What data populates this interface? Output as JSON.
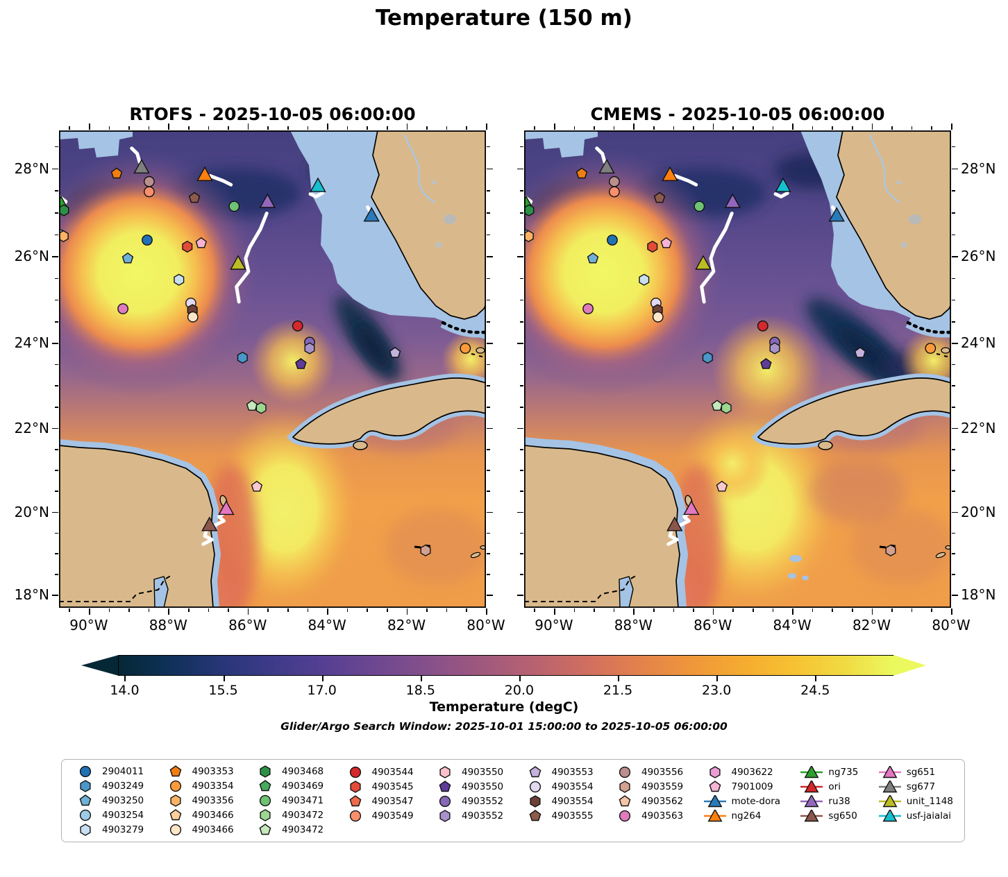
{
  "title": "Temperature (150 m)",
  "subtitle": "Glider/Argo Search Window: 2025-10-01 15:00:00 to 2025-10-05 06:00:00",
  "panels": [
    {
      "title": "RTOFS - 2025-10-05 06:00:00"
    },
    {
      "title": "CMEMS - 2025-10-05 06:00:00"
    }
  ],
  "axes": {
    "lat_ticks": [
      {
        "value": 18,
        "label": "18°N"
      },
      {
        "value": 20,
        "label": "20°N"
      },
      {
        "value": 22,
        "label": "22°N"
      },
      {
        "value": 24,
        "label": "24°N"
      },
      {
        "value": 26,
        "label": "26°N"
      },
      {
        "value": 28,
        "label": "28°N"
      }
    ],
    "lon_ticks": [
      {
        "value": -90,
        "label": "90°W"
      },
      {
        "value": -88,
        "label": "88°W"
      },
      {
        "value": -86,
        "label": "86°W"
      },
      {
        "value": -84,
        "label": "84°W"
      },
      {
        "value": -82,
        "label": "82°W"
      },
      {
        "value": -80,
        "label": "80°W"
      }
    ]
  },
  "colorbar": {
    "label": "Temperature (degC)",
    "ticks": [
      "14.0",
      "15.5",
      "17.0",
      "18.5",
      "20.0",
      "21.5",
      "23.0",
      "24.5"
    ],
    "tick_values": [
      14.0,
      15.5,
      17.0,
      18.5,
      20.0,
      21.5,
      23.0,
      24.5
    ],
    "vmin": 13.9,
    "vmax": 25.7,
    "gradient": [
      [
        "#062836",
        0.0
      ],
      [
        "#0d3055",
        0.059
      ],
      [
        "#263575",
        0.127
      ],
      [
        "#3c3b88",
        0.195
      ],
      [
        "#553f92",
        0.263
      ],
      [
        "#6d4791",
        0.331
      ],
      [
        "#85508a",
        0.398
      ],
      [
        "#9e587e",
        0.466
      ],
      [
        "#b76271",
        0.534
      ],
      [
        "#cf6e60",
        0.602
      ],
      [
        "#e2814d",
        0.669
      ],
      [
        "#ee963b",
        0.737
      ],
      [
        "#f5ab30",
        0.805
      ],
      [
        "#f7c232",
        0.873
      ],
      [
        "#f0dc44",
        0.941
      ],
      [
        "#ebf95e",
        1.0
      ]
    ]
  },
  "legend": {
    "columns": [
      [
        {
          "label": "2904011",
          "shape": "circle",
          "color": "#2171b5"
        },
        {
          "label": "4903249",
          "shape": "hexagon",
          "color": "#4a97c9"
        },
        {
          "label": "4903250",
          "shape": "pentagon",
          "color": "#71b0d6"
        },
        {
          "label": "4903254",
          "shape": "circle",
          "color": "#9dcae6"
        },
        {
          "label": "4903279",
          "shape": "hexagon",
          "color": "#c8dff0"
        }
      ],
      [
        {
          "label": "4903353",
          "shape": "pentagon",
          "color": "#f07f12"
        },
        {
          "label": "4903354",
          "shape": "circle",
          "color": "#fd9a3c"
        },
        {
          "label": "4903356",
          "shape": "hexagon",
          "color": "#fdb366"
        },
        {
          "label": "4903466",
          "shape": "pentagon",
          "color": "#fdcf9a"
        },
        {
          "label": "4903466",
          "shape": "circle",
          "color": "#fde5c8"
        }
      ],
      [
        {
          "label": "4903468",
          "shape": "hexagon",
          "color": "#2c9147"
        },
        {
          "label": "4903469",
          "shape": "pentagon",
          "color": "#47ab5e"
        },
        {
          "label": "4903471",
          "shape": "circle",
          "color": "#6ec273"
        },
        {
          "label": "4903472",
          "shape": "hexagon",
          "color": "#9cd792"
        },
        {
          "label": "4903472",
          "shape": "pentagon",
          "color": "#c5e8bd"
        }
      ],
      [
        {
          "label": "4903544",
          "shape": "circle",
          "color": "#d4292d"
        },
        {
          "label": "4903545",
          "shape": "hexagon",
          "color": "#e34a38"
        },
        {
          "label": "4903547",
          "shape": "pentagon",
          "color": "#ef6a4c"
        },
        {
          "label": "4903549",
          "shape": "circle",
          "color": "#f98f6d"
        }
      ],
      [
        {
          "label": "4903550",
          "shape": "hexagon",
          "color": "#fbc0ca"
        },
        {
          "label": "4903550",
          "shape": "pentagon",
          "color": "#5e3c99"
        },
        {
          "label": "4903552",
          "shape": "circle",
          "color": "#8668b6"
        },
        {
          "label": "4903552",
          "shape": "hexagon",
          "color": "#a991cc"
        }
      ],
      [
        {
          "label": "4903553",
          "shape": "pentagon",
          "color": "#c4b2de"
        },
        {
          "label": "4903554",
          "shape": "circle",
          "color": "#e2d9f0"
        },
        {
          "label": "4903554",
          "shape": "hexagon",
          "color": "#6b4036"
        },
        {
          "label": "4903555",
          "shape": "pentagon",
          "color": "#8d5b4c"
        }
      ],
      [
        {
          "label": "4903556",
          "shape": "circle",
          "color": "#bc8f8f"
        },
        {
          "label": "4903559",
          "shape": "hexagon",
          "color": "#d2a190"
        },
        {
          "label": "4903562",
          "shape": "pentagon",
          "color": "#f3c6a5"
        },
        {
          "label": "4903563",
          "shape": "circle",
          "color": "#e07bbf"
        }
      ],
      [
        {
          "label": "4903622",
          "shape": "hexagon",
          "color": "#ea9cd3"
        },
        {
          "label": "7901009",
          "shape": "pentagon",
          "color": "#f6b3d4"
        },
        {
          "label": "mote-dora",
          "shape": "triangle",
          "color": "#2a7ab9",
          "line": true
        },
        {
          "label": "ng264",
          "shape": "triangle",
          "color": "#ff7f0e",
          "line": true
        }
      ],
      [
        {
          "label": "ng735",
          "shape": "triangle",
          "color": "#2ca02c",
          "line": true
        },
        {
          "label": "ori",
          "shape": "triangle",
          "color": "#d62728",
          "line": true
        },
        {
          "label": "ru38",
          "shape": "triangle",
          "color": "#9467bd",
          "line": true
        },
        {
          "label": "sg650",
          "shape": "triangle",
          "color": "#8c564b",
          "line": true
        }
      ],
      [
        {
          "label": "sg651",
          "shape": "triangle",
          "color": "#e377c2",
          "line": true
        },
        {
          "label": "sg677",
          "shape": "triangle",
          "color": "#7f7f7f",
          "line": true
        },
        {
          "label": "unit_1148",
          "shape": "triangle",
          "color": "#bcbd22",
          "line": true
        },
        {
          "label": "usf-jaialai",
          "shape": "triangle",
          "color": "#17becf",
          "line": true
        }
      ]
    ]
  },
  "chart_data": {
    "type": "heatmap",
    "title": "Temperature (150 m)",
    "panels": [
      "RTOFS - 2025-10-05 06:00:00",
      "CMEMS - 2025-10-05 06:00:00"
    ],
    "variable": "Temperature (degC)",
    "depth_m": 150,
    "projection": "mercator",
    "lon_range": [
      -90.75,
      -80.0
    ],
    "lat_range": [
      17.68,
      28.85
    ],
    "lon_tick_labels": [
      "90°W",
      "88°W",
      "86°W",
      "84°W",
      "82°W",
      "80°W"
    ],
    "lat_tick_labels": [
      "18°N",
      "20°N",
      "22°N",
      "24°N",
      "26°N",
      "28°N"
    ],
    "colorbar_label": "Temperature (degC)",
    "colorbar_ticks": [
      14.0,
      15.5,
      17.0,
      18.5,
      20.0,
      21.5,
      23.0,
      24.5
    ],
    "colorbar_range": [
      13.9,
      25.7
    ],
    "search_window": "2025-10-01 15:00:00 to 2025-10-05 06:00:00",
    "markers": [
      {
        "id": "4903353",
        "shape": "pentagon",
        "color": "#f07f12",
        "lon": -89.3,
        "lat": 27.88
      },
      {
        "id": "sg677",
        "shape": "triangle",
        "color": "#7f7f7f",
        "lon": -88.67,
        "lat": 28.02
      },
      {
        "id": "4903556",
        "shape": "circle",
        "color": "#bc8f8f",
        "lon": -88.48,
        "lat": 27.7
      },
      {
        "id": "4903549",
        "shape": "circle",
        "color": "#f98f6d",
        "lon": -88.48,
        "lat": 27.47
      },
      {
        "id": "ng264",
        "shape": "triangle",
        "color": "#ff7f0e",
        "lon": -87.08,
        "lat": 27.85
      },
      {
        "id": "4903555",
        "shape": "pentagon",
        "color": "#8d5b4c",
        "lon": -87.34,
        "lat": 27.33
      },
      {
        "id": "4903471",
        "shape": "circle",
        "color": "#6ec273",
        "lon": -86.34,
        "lat": 27.14
      },
      {
        "id": "ru38",
        "shape": "triangle",
        "color": "#9467bd",
        "lon": -85.5,
        "lat": 27.24
      },
      {
        "id": "ng735",
        "shape": "triangle",
        "color": "#2ca02c",
        "lon": -90.7,
        "lat": 27.19
      },
      {
        "id": "4903468",
        "shape": "hexagon",
        "color": "#2c9147",
        "lon": -90.63,
        "lat": 27.05
      },
      {
        "id": "4903254",
        "shape": "circle",
        "color": "#9dcae6",
        "lon": -90.72,
        "lat": 26.49
      },
      {
        "id": "4903356",
        "shape": "hexagon",
        "color": "#fdb366",
        "lon": -90.64,
        "lat": 26.46
      },
      {
        "id": "2904011",
        "shape": "circle",
        "color": "#2171b5",
        "lon": -88.53,
        "lat": 26.37
      },
      {
        "id": "4903545",
        "shape": "hexagon",
        "color": "#e34a38",
        "lon": -87.52,
        "lat": 26.22
      },
      {
        "id": "7901009",
        "shape": "pentagon",
        "color": "#f6b3d4",
        "lon": -87.17,
        "lat": 26.3
      },
      {
        "id": "4903250",
        "shape": "pentagon",
        "color": "#71b0d6",
        "lon": -89.02,
        "lat": 25.95
      },
      {
        "id": "unit_1148",
        "shape": "triangle",
        "color": "#bcbd22",
        "lon": -86.24,
        "lat": 25.83
      },
      {
        "id": "4903279",
        "shape": "hexagon",
        "color": "#c8dff0",
        "lon": -87.73,
        "lat": 25.46
      },
      {
        "id": "4903563",
        "shape": "circle",
        "color": "#e07bbf",
        "lon": -89.14,
        "lat": 24.79
      },
      {
        "id": "4903554",
        "shape": "circle",
        "color": "#e2d9f0",
        "lon": -87.43,
        "lat": 24.92
      },
      {
        "id": "4903554",
        "shape": "hexagon",
        "color": "#6b4036",
        "lon": -87.39,
        "lat": 24.76
      },
      {
        "id": "4903466",
        "shape": "circle",
        "color": "#fde5c8",
        "lon": -87.38,
        "lat": 24.6
      },
      {
        "id": "4903544",
        "shape": "circle",
        "color": "#d4292d",
        "lon": -84.74,
        "lat": 24.39
      },
      {
        "id": "4903552",
        "shape": "circle",
        "color": "#8668b6",
        "lon": -84.44,
        "lat": 24.01
      },
      {
        "id": "4903552",
        "shape": "hexagon",
        "color": "#a991cc",
        "lon": -84.44,
        "lat": 23.87
      },
      {
        "id": "4903249",
        "shape": "hexagon",
        "color": "#4a97c9",
        "lon": -86.13,
        "lat": 23.65
      },
      {
        "id": "4903550",
        "shape": "pentagon",
        "color": "#5e3c99",
        "lon": -84.66,
        "lat": 23.5
      },
      {
        "id": "4903553",
        "shape": "pentagon",
        "color": "#c4b2de",
        "lon": -82.29,
        "lat": 23.76
      },
      {
        "id": "4903354",
        "shape": "circle",
        "color": "#fd9a3c",
        "lon": -80.52,
        "lat": 23.87
      },
      {
        "id": "4903472",
        "shape": "pentagon",
        "color": "#c5e8bd",
        "lon": -85.89,
        "lat": 22.52
      },
      {
        "id": "4903472",
        "shape": "hexagon",
        "color": "#9cd792",
        "lon": -85.66,
        "lat": 22.47
      },
      {
        "id": "7901009",
        "shape": "pentagon",
        "color": "#f8c8cf",
        "lon": -85.77,
        "lat": 20.6
      },
      {
        "id": "sg651",
        "shape": "triangle",
        "color": "#e377c2",
        "lon": -86.54,
        "lat": 20.07
      },
      {
        "id": "sg650",
        "shape": "triangle",
        "color": "#8c564b",
        "lon": -86.96,
        "lat": 19.68
      },
      {
        "id": "4903559",
        "shape": "hexagon",
        "color": "#d2a190",
        "lon": -81.52,
        "lat": 19.07
      },
      {
        "id": "usf-jaialai",
        "shape": "triangle",
        "color": "#17becf",
        "lon": -84.23,
        "lat": 27.6
      },
      {
        "id": "mote-dora",
        "shape": "triangle",
        "color": "#2a7ab9",
        "lon": -82.88,
        "lat": 26.93
      }
    ],
    "tracks": [
      {
        "id": "sg677-track",
        "points": [
          [
            -88.92,
            28.45
          ],
          [
            -88.78,
            28.33
          ],
          [
            -88.72,
            28.14
          ]
        ]
      },
      {
        "id": "ng264-track",
        "points": [
          [
            -86.95,
            27.83
          ],
          [
            -86.62,
            27.72
          ],
          [
            -86.42,
            27.63
          ]
        ]
      },
      {
        "id": "ru38-track",
        "points": [
          [
            -85.52,
            26.98
          ],
          [
            -85.68,
            26.62
          ],
          [
            -85.95,
            26.2
          ],
          [
            -86.05,
            25.95
          ],
          [
            -85.98,
            25.65
          ],
          [
            -86.28,
            25.3
          ],
          [
            -86.22,
            24.95
          ]
        ]
      },
      {
        "id": "usf-jaialai-track",
        "points": [
          [
            -84.42,
            27.42
          ],
          [
            -84.28,
            27.36
          ],
          [
            -84.12,
            27.44
          ]
        ]
      },
      {
        "id": "mote-dora-track",
        "points": [
          [
            -82.98,
            27.12
          ],
          [
            -82.9,
            27.0
          ]
        ]
      },
      {
        "id": "ng735-track",
        "points": [
          [
            -90.73,
            27.35
          ],
          [
            -90.58,
            27.25
          ],
          [
            -90.7,
            27.05
          ]
        ]
      },
      {
        "id": "sg650-track",
        "points": [
          [
            -86.52,
            20.02
          ],
          [
            -86.72,
            19.88
          ],
          [
            -86.6,
            19.78
          ],
          [
            -87.03,
            19.58
          ],
          [
            -87.08,
            19.42
          ],
          [
            -86.9,
            19.33
          ],
          [
            -87.12,
            19.22
          ]
        ]
      }
    ]
  }
}
